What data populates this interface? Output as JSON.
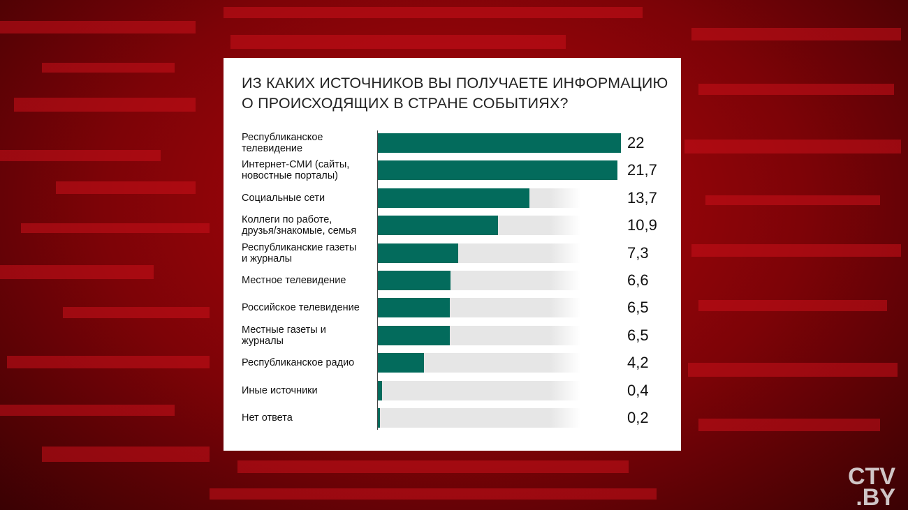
{
  "chart_data": {
    "type": "bar",
    "orientation": "horizontal",
    "title": "ИЗ КАКИХ ИСТОЧНИКОВ ВЫ ПОЛУЧАЕТЕ ИНФОРМАЦИЮ\nО ПРОИСХОДЯЩИХ В СТРАНЕ СОБЫТИЯХ?",
    "categories": [
      "Республиканское\nтелевидение",
      "Интернет-СМИ (сайты,\nновостные порталы)",
      "Социальные сети",
      "Коллеги по работе,\nдрузья/знакомые, семья",
      "Республиканские газеты\nи журналы",
      "Местное телевидение",
      "Российское телевидение",
      "Местные газеты и\nжурналы",
      "Республиканское радио",
      "Иные источники",
      "Нет ответа"
    ],
    "values": [
      22,
      21.7,
      13.7,
      10.9,
      7.3,
      6.6,
      6.5,
      6.5,
      4.2,
      0.4,
      0.2
    ],
    "value_labels": [
      "22",
      "21,7",
      "13,7",
      "10,9",
      "7,3",
      "6,6",
      "6,5",
      "6,5",
      "4,2",
      "0,4",
      "0,2"
    ],
    "color": "#036b5c"
  },
  "logo": "CTV\n.BY"
}
